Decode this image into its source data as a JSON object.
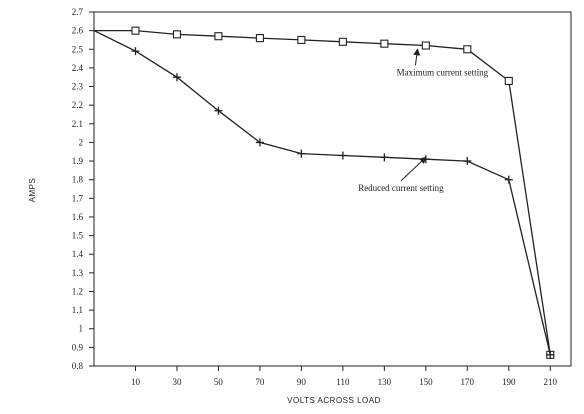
{
  "chart_data": {
    "type": "line",
    "title": "",
    "xlabel": "VOLTS ACROSS LOAD",
    "ylabel": "AMPS",
    "x_ticks": [
      "10",
      "30",
      "50",
      "70",
      "90",
      "110",
      "130",
      "150",
      "170",
      "190",
      "210"
    ],
    "y_ticks": [
      "2.7",
      "2.6",
      "2.5",
      "2.4",
      "2.3",
      "2.2",
      "2.1",
      "2",
      "1.9",
      "1.8",
      "1.7",
      "1.6",
      "1.5",
      "1.4",
      "1.3",
      "1.2",
      "1.1",
      "1",
      "0.9",
      "0.8"
    ],
    "xlim": [
      -10,
      220
    ],
    "ylim": [
      0.8,
      2.7
    ],
    "grid": false,
    "series": [
      {
        "name": "",
        "marker": "square",
        "x": [
          -10,
          10,
          30,
          50,
          70,
          90,
          110,
          130,
          150,
          170,
          190,
          210
        ],
        "y": [
          2.6,
          2.6,
          2.58,
          2.57,
          2.56,
          2.55,
          2.54,
          2.53,
          2.52,
          2.5,
          2.33,
          0.86
        ]
      },
      {
        "name": "",
        "marker": "plus",
        "x": [
          -10,
          10,
          30,
          50,
          70,
          90,
          110,
          130,
          150,
          170,
          190,
          210
        ],
        "y": [
          2.6,
          2.49,
          2.35,
          2.17,
          2.0,
          1.94,
          1.93,
          1.92,
          1.91,
          1.9,
          1.8,
          0.86
        ]
      }
    ],
    "annotations": [
      {
        "text": "Maximum current setting",
        "x": 158,
        "y": 2.36,
        "arrow_to": [
          146,
          2.5
        ]
      },
      {
        "text": "Reduced current setting",
        "x": 138,
        "y": 1.74,
        "arrow_to": [
          150,
          1.92
        ]
      }
    ]
  }
}
